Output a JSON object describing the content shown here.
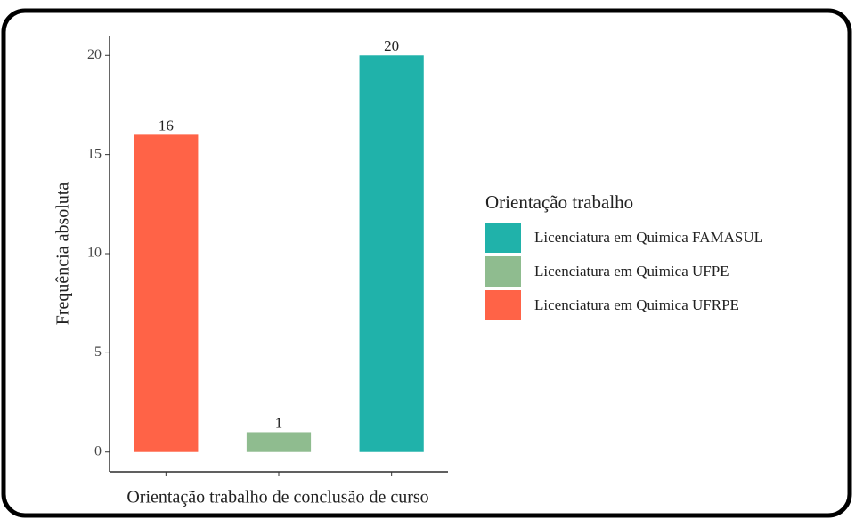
{
  "chart_data": {
    "type": "bar",
    "x_label": "Orientação trabalho de conclusão de curso",
    "y_label": "Frequência absoluta",
    "legend_title": "Orientação trabalho",
    "categories": [
      null,
      null,
      null
    ],
    "series": [
      {
        "name": "Licenciatura em Quimica FAMASUL",
        "color": "#20b2aa",
        "values": [
          null,
          null,
          20
        ]
      },
      {
        "name": "Licenciatura em Quimica UFPE",
        "color": "#8fbc8f",
        "values": [
          null,
          1,
          null
        ]
      },
      {
        "name": "Licenciatura em Quimica UFRPE",
        "color": "#ff6347",
        "values": [
          16,
          null,
          null
        ]
      }
    ],
    "ylim": [
      -1,
      21
    ],
    "yticks": [
      0,
      5,
      10,
      15,
      20
    ],
    "grid": false,
    "legend": "right"
  }
}
